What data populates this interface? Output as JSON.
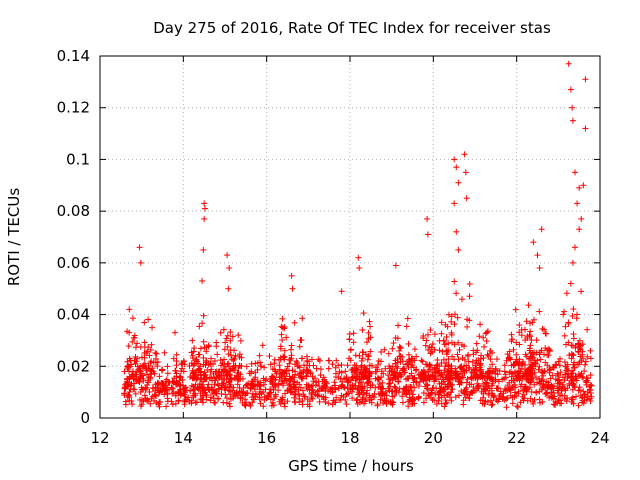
{
  "chart_data": {
    "type": "scatter",
    "title": "Day 275 of 2016, Rate Of TEC Index for receiver stas",
    "xlabel": "GPS time / hours",
    "ylabel": "ROTI / TECUs",
    "xlim": [
      12,
      24
    ],
    "ylim": [
      0,
      0.14
    ],
    "xticks": [
      12,
      14,
      16,
      18,
      20,
      22,
      24
    ],
    "yticks": [
      0,
      0.02,
      0.04,
      0.06,
      0.08,
      0.1,
      0.12,
      0.14
    ],
    "xtick_labels": [
      "12",
      "14",
      "16",
      "18",
      "20",
      "22",
      "24"
    ],
    "ytick_labels": [
      "0",
      "0.02",
      "0.04",
      "0.06",
      "0.08",
      "0.1",
      "0.12",
      "0.14"
    ],
    "grid": true,
    "marker": "+",
    "color": "#ff0000",
    "time_span": [
      12.55,
      23.8
    ],
    "baseline_range": [
      0.004,
      0.028
    ],
    "notable_points": [
      {
        "x": 12.95,
        "y": 0.066
      },
      {
        "x": 12.98,
        "y": 0.06
      },
      {
        "x": 12.7,
        "y": 0.033
      },
      {
        "x": 13.8,
        "y": 0.033
      },
      {
        "x": 14.5,
        "y": 0.083
      },
      {
        "x": 14.52,
        "y": 0.081
      },
      {
        "x": 14.5,
        "y": 0.077
      },
      {
        "x": 14.48,
        "y": 0.065
      },
      {
        "x": 14.45,
        "y": 0.053
      },
      {
        "x": 15.05,
        "y": 0.063
      },
      {
        "x": 15.1,
        "y": 0.058
      },
      {
        "x": 15.08,
        "y": 0.05
      },
      {
        "x": 16.6,
        "y": 0.055
      },
      {
        "x": 16.62,
        "y": 0.05
      },
      {
        "x": 17.8,
        "y": 0.049
      },
      {
        "x": 18.2,
        "y": 0.062
      },
      {
        "x": 18.22,
        "y": 0.058
      },
      {
        "x": 19.1,
        "y": 0.059
      },
      {
        "x": 19.85,
        "y": 0.077
      },
      {
        "x": 19.87,
        "y": 0.071
      },
      {
        "x": 20.5,
        "y": 0.1
      },
      {
        "x": 20.55,
        "y": 0.097
      },
      {
        "x": 20.6,
        "y": 0.091
      },
      {
        "x": 20.5,
        "y": 0.083
      },
      {
        "x": 20.55,
        "y": 0.072
      },
      {
        "x": 20.6,
        "y": 0.065
      },
      {
        "x": 20.75,
        "y": 0.102
      },
      {
        "x": 20.78,
        "y": 0.095
      },
      {
        "x": 20.8,
        "y": 0.085
      },
      {
        "x": 22.4,
        "y": 0.068
      },
      {
        "x": 22.5,
        "y": 0.063
      },
      {
        "x": 22.6,
        "y": 0.073
      },
      {
        "x": 22.55,
        "y": 0.058
      },
      {
        "x": 23.25,
        "y": 0.137
      },
      {
        "x": 23.3,
        "y": 0.127
      },
      {
        "x": 23.33,
        "y": 0.12
      },
      {
        "x": 23.35,
        "y": 0.115
      },
      {
        "x": 23.65,
        "y": 0.131
      },
      {
        "x": 23.65,
        "y": 0.112
      },
      {
        "x": 23.4,
        "y": 0.095
      },
      {
        "x": 23.5,
        "y": 0.089
      },
      {
        "x": 23.6,
        "y": 0.09
      },
      {
        "x": 23.45,
        "y": 0.083
      },
      {
        "x": 23.55,
        "y": 0.077
      },
      {
        "x": 23.5,
        "y": 0.073
      },
      {
        "x": 23.4,
        "y": 0.066
      },
      {
        "x": 23.35,
        "y": 0.06
      },
      {
        "x": 23.3,
        "y": 0.052
      }
    ],
    "activity_clusters": [
      {
        "center": 12.95,
        "peak": 0.045
      },
      {
        "center": 14.5,
        "peak": 0.045
      },
      {
        "center": 15.1,
        "peak": 0.035
      },
      {
        "center": 16.6,
        "peak": 0.045
      },
      {
        "center": 18.2,
        "peak": 0.045
      },
      {
        "center": 19.3,
        "peak": 0.04
      },
      {
        "center": 20.0,
        "peak": 0.045
      },
      {
        "center": 20.6,
        "peak": 0.06
      },
      {
        "center": 21.2,
        "peak": 0.042
      },
      {
        "center": 22.1,
        "peak": 0.045
      },
      {
        "center": 22.5,
        "peak": 0.05
      },
      {
        "center": 23.4,
        "peak": 0.055
      }
    ]
  }
}
